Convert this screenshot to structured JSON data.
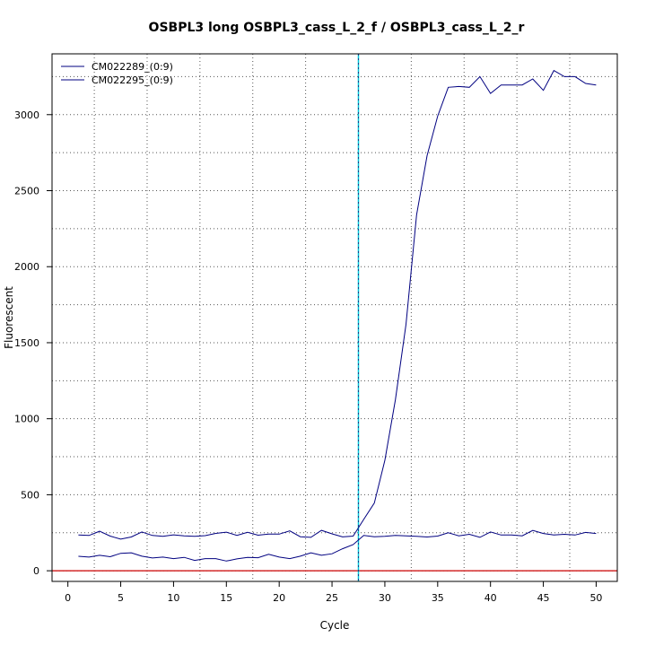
{
  "chart_data": {
    "type": "line",
    "title": "OSBPL3 long OSBPL3_cass_L_2_f / OSBPL3_cass_L_2_r",
    "xlabel": "Cycle",
    "ylabel": "Fluorescent",
    "xlim": [
      -1.5,
      52
    ],
    "ylim": [
      -70,
      3400
    ],
    "xticks": [
      0,
      5,
      10,
      15,
      20,
      25,
      30,
      35,
      40,
      45,
      50
    ],
    "yticks": [
      0,
      500,
      1000,
      1500,
      2000,
      2500,
      3000
    ],
    "grid": true,
    "legend_position": "top-left",
    "threshold": {
      "value": 0,
      "color": "#cc0000"
    },
    "threshold_cycle": {
      "value": 27.5,
      "color": "#00c8d8"
    },
    "x": [
      1,
      2,
      3,
      4,
      5,
      6,
      7,
      8,
      9,
      10,
      11,
      12,
      13,
      14,
      15,
      16,
      17,
      18,
      19,
      20,
      21,
      22,
      23,
      24,
      25,
      26,
      27,
      28,
      29,
      30,
      31,
      32,
      33,
      34,
      35,
      36,
      37,
      38,
      39,
      40,
      41,
      42,
      43,
      44,
      45,
      46,
      47,
      48,
      49,
      50
    ],
    "series": [
      {
        "name": "CM022289_(0:9)",
        "color": "#000080",
        "values": [
          235,
          232,
          260,
          228,
          208,
          222,
          255,
          232,
          226,
          236,
          229,
          226,
          231,
          246,
          254,
          233,
          253,
          234,
          241,
          241,
          262,
          224,
          220,
          266,
          243,
          223,
          228,
          338,
          445,
          725,
          1125,
          1620,
          2340,
          2730,
          2990,
          3180,
          3185,
          3180,
          3250,
          3140,
          3195,
          3195,
          3195,
          3235,
          3160,
          3290,
          3250,
          3250,
          3205,
          3195
        ]
      },
      {
        "name": "CM022295_(0:9)",
        "color": "#000080",
        "values": [
          95,
          90,
          102,
          92,
          115,
          118,
          96,
          84,
          90,
          80,
          88,
          68,
          80,
          80,
          64,
          78,
          88,
          86,
          108,
          90,
          80,
          96,
          118,
          102,
          112,
          145,
          172,
          232,
          224,
          226,
          232,
          230,
          226,
          222,
          228,
          250,
          230,
          240,
          220,
          255,
          235,
          235,
          230,
          265,
          245,
          235,
          240,
          235,
          252,
          245
        ]
      }
    ]
  }
}
